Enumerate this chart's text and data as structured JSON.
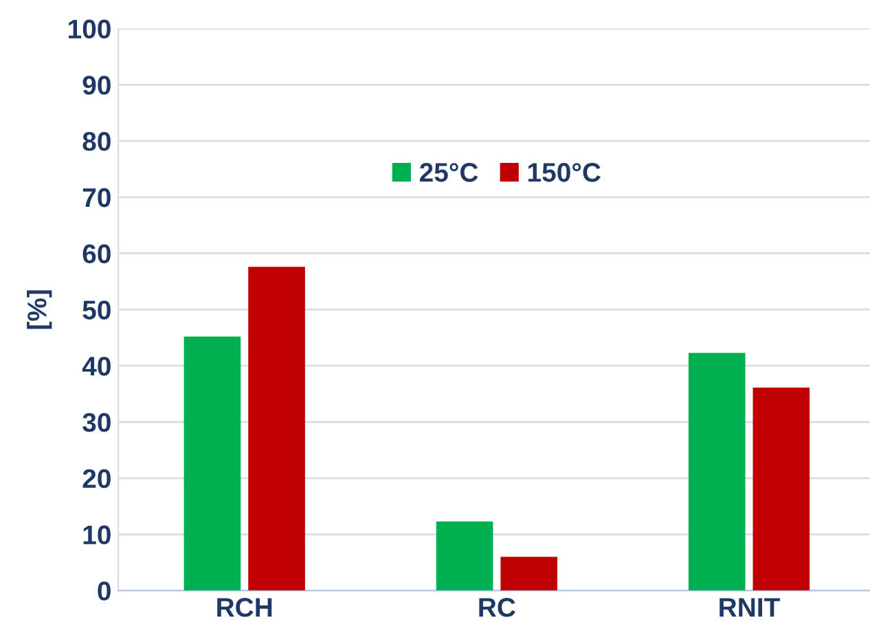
{
  "chart_data": {
    "type": "bar",
    "ylabel": "[%]",
    "categories": [
      "RCH",
      "RC",
      "RNIT"
    ],
    "series": [
      {
        "name": "25°C",
        "color": "#00b050",
        "values": [
          45.2,
          12.3,
          42.3
        ]
      },
      {
        "name": "150°C",
        "color": "#c00000",
        "values": [
          57.6,
          6.0,
          36.1
        ]
      }
    ],
    "ylim": [
      0,
      100
    ],
    "yticks": [
      0,
      10,
      20,
      30,
      40,
      50,
      60,
      70,
      80,
      90,
      100
    ],
    "grid": "y",
    "legend": "top"
  }
}
